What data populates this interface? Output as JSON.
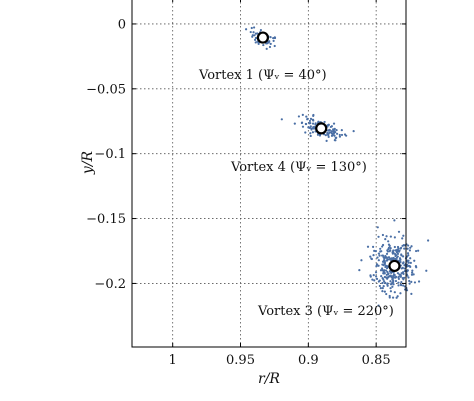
{
  "chart_data": {
    "type": "scatter",
    "xlabel": "r/R",
    "ylabel": "y/R",
    "xlim": [
      1.03,
      0.828
    ],
    "ylim": [
      -0.249,
      0.02
    ],
    "x_reversed": true,
    "grid": true,
    "x_ticks": [
      1.0,
      0.95,
      0.9,
      0.85
    ],
    "x_tick_labels": [
      "1",
      "0.95",
      "0.9",
      "0.85"
    ],
    "y_ticks": [
      0,
      -0.05,
      -0.1,
      -0.15,
      -0.2
    ],
    "y_tick_labels": [
      "0",
      "−0.05",
      "−0.1",
      "−0.15",
      "−0.2"
    ],
    "scatter_color": "#4a6fa5",
    "marker_edge_color": "#000000",
    "marker_face_color": "#ffffff",
    "vortices": [
      {
        "label": "Vortex 1 (Ψᵥ = 40°)",
        "mean": [
          0.9335,
          -0.0105
        ],
        "spread": [
          0.0028,
          0.0055
        ],
        "n": 60,
        "angle": -60
      },
      {
        "label": "Vortex 4 (Ψᵥ = 130°)",
        "mean": [
          0.8905,
          -0.0805
        ],
        "spread": [
          0.0085,
          0.0033
        ],
        "n": 140,
        "angle": 20
      },
      {
        "label": "Vortex 3 (Ψᵥ = 220°)",
        "mean": [
          0.8365,
          -0.1865
        ],
        "spread": [
          0.0085,
          0.01
        ],
        "n": 320,
        "angle": 15
      }
    ]
  }
}
